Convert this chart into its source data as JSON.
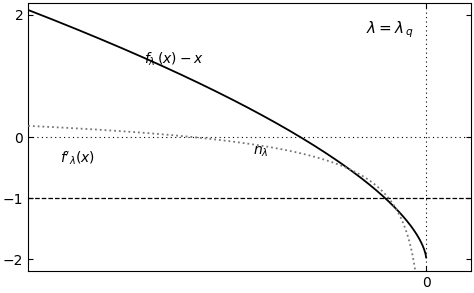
{
  "xlim": [
    -3.1,
    0.35
  ],
  "ylim": [
    -2.2,
    2.2
  ],
  "yticks": [
    -2,
    -1,
    0,
    2
  ],
  "xticks": [
    0
  ],
  "hline_0_y": 0,
  "hline_m1_y": -1,
  "vline_x": 0,
  "solid_color": "#000000",
  "dotted_color": "#777777",
  "bg_color": "#ffffff",
  "figsize": [
    4.74,
    2.93
  ],
  "dpi": 100,
  "x_start": -3.1,
  "x_end": -0.001,
  "n_points": 800
}
